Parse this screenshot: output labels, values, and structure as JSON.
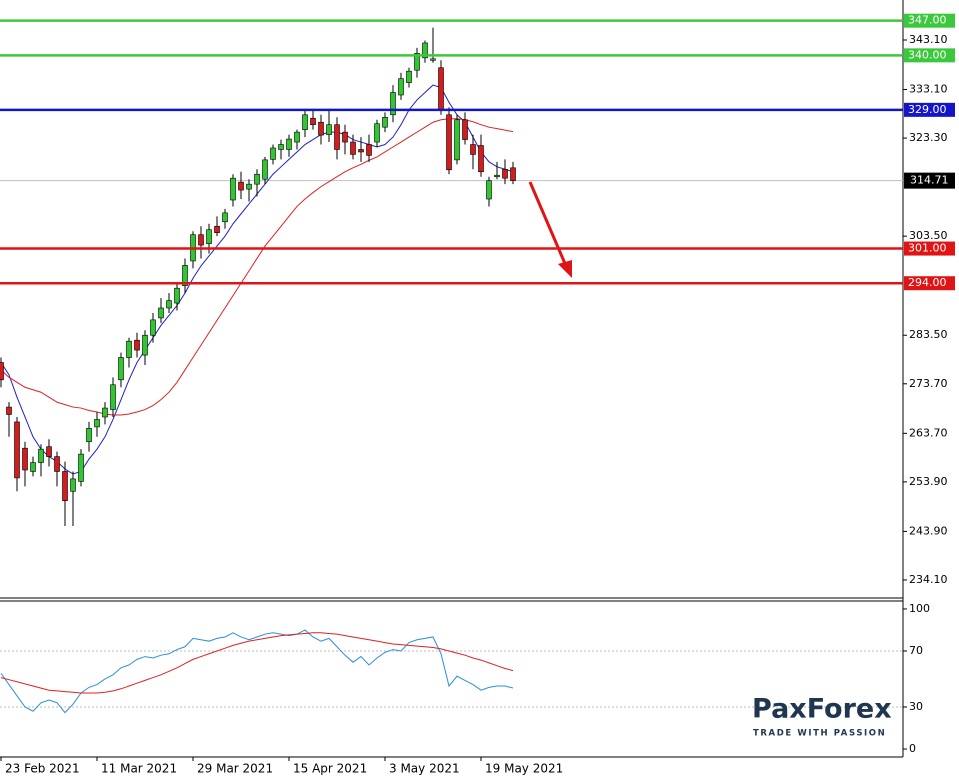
{
  "chart_data": [
    {
      "type": "candlestick",
      "categories": [
        "23 Feb 2021",
        null,
        null,
        null,
        null,
        null,
        null,
        null,
        null,
        null,
        null,
        null,
        "11 Mar 2021",
        null,
        null,
        null,
        null,
        null,
        null,
        null,
        null,
        null,
        null,
        null,
        "29 Mar 2021",
        null,
        null,
        null,
        null,
        null,
        null,
        null,
        null,
        null,
        null,
        null,
        "15 Apr 2021",
        null,
        null,
        null,
        null,
        null,
        null,
        null,
        null,
        null,
        null,
        null,
        "3 May 2021",
        null,
        null,
        null,
        null,
        null,
        null,
        null,
        null,
        null,
        null,
        null,
        "19 May 2021",
        null,
        null,
        null,
        null
      ],
      "open": [
        278,
        269,
        266,
        260.7,
        256,
        257.8,
        261,
        259,
        256,
        252,
        254,
        262,
        265,
        267,
        268.5,
        274.5,
        279,
        282.5,
        279.5,
        283.5,
        287,
        289,
        290,
        293.5,
        298.5,
        303.8,
        302,
        305.5,
        306.4,
        310.8,
        314.4,
        313,
        314,
        315,
        319,
        321,
        321,
        322.5,
        325,
        327.3,
        326.5,
        324,
        326,
        324.5,
        322.5,
        321,
        322,
        322.5,
        325.5,
        328,
        332,
        334.5,
        337,
        339.5,
        339,
        337.5,
        328,
        318.9,
        327,
        322,
        321.8,
        311,
        315.5,
        317,
        317.3
      ],
      "high": [
        279,
        270,
        267,
        262,
        259,
        261.5,
        262.5,
        260,
        258,
        256,
        260.5,
        266,
        268,
        270,
        275,
        280,
        283,
        284,
        284.5,
        288,
        291,
        292,
        294,
        299,
        304.5,
        305.5,
        306,
        307.5,
        309,
        316,
        316.5,
        315,
        317,
        319.5,
        322,
        323,
        324,
        325,
        329,
        329,
        328,
        329,
        327.5,
        326,
        324,
        323.5,
        324,
        327,
        328.5,
        334,
        336.5,
        337.5,
        341.5,
        343,
        345.6,
        339,
        329.5,
        328,
        328.5,
        324,
        324,
        315.5,
        318.5,
        319,
        318.5
      ],
      "low": [
        273,
        263,
        252,
        253,
        255,
        255,
        257,
        253,
        245,
        245,
        253,
        260,
        263,
        265.5,
        267,
        273,
        277,
        279,
        277.5,
        282,
        286,
        288,
        288.5,
        292,
        297,
        299,
        300,
        303.5,
        305,
        309.5,
        311,
        310.5,
        311.5,
        314,
        318,
        319,
        319.5,
        321,
        323.5,
        325,
        322,
        322.5,
        319,
        320,
        319,
        318.5,
        318.5,
        321.5,
        324.5,
        326.5,
        331,
        333.5,
        335.5,
        338.5,
        338.5,
        328,
        316,
        318,
        322,
        317,
        315.5,
        309.5,
        315,
        314,
        314
      ],
      "close": [
        274.5,
        267.5,
        254.7,
        256.3,
        257.8,
        260.5,
        259,
        256,
        250.1,
        254.5,
        259.5,
        264.7,
        266.5,
        268.8,
        273.5,
        279,
        282.3,
        280.5,
        283.5,
        286.6,
        289,
        290.5,
        293,
        297.6,
        303.8,
        301.7,
        304.8,
        304.2,
        308.2,
        315.2,
        312.8,
        314,
        316,
        318.9,
        321.3,
        322,
        323.1,
        324.5,
        328,
        326,
        323.9,
        326,
        321,
        322.5,
        320,
        320.5,
        319.8,
        326.2,
        327.5,
        332.5,
        335.3,
        336.8,
        340.4,
        342.5,
        339.3,
        329,
        316.9,
        327,
        323,
        320,
        316.5,
        314.7,
        315.8,
        315.2,
        314.71
      ],
      "up_color": "#2ec82e",
      "down_color": "#d41c1c",
      "ma": [
        {
          "color": "#1f1fc8",
          "values": [
            278,
            275.5,
            271,
            267,
            263,
            260.5,
            259,
            258,
            256.5,
            255.5,
            256,
            258.5,
            260.5,
            263,
            266.5,
            270.5,
            274.5,
            278,
            280.5,
            283,
            285.5,
            287.5,
            289.5,
            292,
            295,
            297.5,
            299.5,
            301.5,
            303.5,
            306,
            308,
            310,
            312,
            314,
            316,
            317.5,
            319,
            320.5,
            322,
            323,
            324,
            324.5,
            324.5,
            324,
            323,
            322.5,
            322,
            321.5,
            322,
            323.5,
            326,
            329,
            331,
            332.5,
            334,
            333.5,
            330.5,
            328,
            326.5,
            323.5,
            320.5,
            318.5,
            317.5,
            317,
            316.5
          ]
        },
        {
          "color": "#e02020",
          "values": [
            276.5,
            275,
            274,
            273,
            272.5,
            272,
            271,
            270,
            269.5,
            269,
            268.8,
            268.3,
            268,
            267.6,
            267.4,
            267.4,
            267.6,
            268,
            268.5,
            269.3,
            270.5,
            272,
            274,
            276.5,
            279,
            281.5,
            284,
            286.5,
            289,
            291.5,
            294,
            296.5,
            299,
            301.5,
            303.5,
            305.5,
            307.5,
            309.5,
            311,
            312.3,
            313.5,
            314.5,
            315.5,
            316.5,
            317.3,
            318,
            318.8,
            319.5,
            320.5,
            321.5,
            322.5,
            323.5,
            324.5,
            325.5,
            326.5,
            327,
            327.2,
            327.2,
            327,
            326.6,
            326,
            325.5,
            325.2,
            324.9,
            324.6
          ]
        }
      ],
      "levels": [
        {
          "value": 347,
          "label": "347.00",
          "color": "#3cc83c"
        },
        {
          "value": 340,
          "label": "340.00",
          "color": "#3cc83c"
        },
        {
          "value": 329,
          "label": "329.00",
          "color": "#1414c8"
        },
        {
          "value": 301,
          "label": "301.00",
          "color": "#e01414"
        },
        {
          "value": 294,
          "label": "294.00",
          "color": "#e01414"
        }
      ],
      "last": 314.71,
      "ylim": [
        230.66,
        350.77
      ],
      "yticks": [
        {
          "value": 343.1,
          "label": "343.10"
        },
        {
          "value": 333.1,
          "label": "333.10"
        },
        {
          "value": 323.3,
          "label": "323.30"
        },
        {
          "value": 303.5,
          "label": "303.50"
        },
        {
          "value": 283.5,
          "label": "283.50"
        },
        {
          "value": 273.7,
          "label": "273.70"
        },
        {
          "value": 263.7,
          "label": "263.70"
        },
        {
          "value": 253.9,
          "label": "253.90"
        },
        {
          "value": 243.9,
          "label": "243.90"
        },
        {
          "value": 234.1,
          "label": "234.10"
        }
      ]
    },
    {
      "type": "line",
      "series": [
        {
          "color": "#2a8fd8",
          "values": [
            54,
            46,
            38,
            30,
            27,
            33,
            35,
            33,
            26,
            32,
            40,
            44,
            46,
            50,
            53,
            58,
            60,
            64,
            66,
            65,
            67,
            68,
            71,
            73,
            79,
            78,
            77,
            79,
            80,
            83,
            80,
            78,
            80,
            82,
            83,
            82,
            81,
            82,
            85,
            80,
            77,
            79,
            73,
            67,
            62,
            66,
            60,
            65,
            69,
            71,
            70,
            76,
            78,
            79,
            80,
            68,
            45,
            52,
            49,
            46,
            42,
            44,
            45,
            45,
            43.6
          ]
        },
        {
          "color": "#e02020",
          "values": [
            51,
            49.5,
            48,
            46.5,
            45,
            43.5,
            42,
            41.5,
            41,
            40.5,
            40,
            40,
            40,
            40.5,
            41.5,
            43,
            45,
            47,
            49,
            51,
            53,
            55.5,
            58,
            61,
            64,
            66,
            68,
            70,
            72,
            74,
            75.5,
            77,
            78,
            79,
            80,
            81,
            81.5,
            82,
            82.5,
            83,
            83,
            82.5,
            82,
            81,
            80,
            79,
            78,
            77,
            76,
            75,
            74.5,
            74,
            73.5,
            73,
            72.5,
            71.5,
            70,
            68.5,
            67,
            65,
            63.5,
            61.5,
            59.5,
            57.5,
            56
          ]
        }
      ],
      "levels": [
        30,
        70
      ],
      "ylim": [
        -5.7,
        106.4
      ],
      "yticks": [
        0,
        30,
        70,
        100
      ]
    }
  ],
  "logo": {
    "name": "PaxForex",
    "tagline": "TRADE WITH PASSION"
  }
}
